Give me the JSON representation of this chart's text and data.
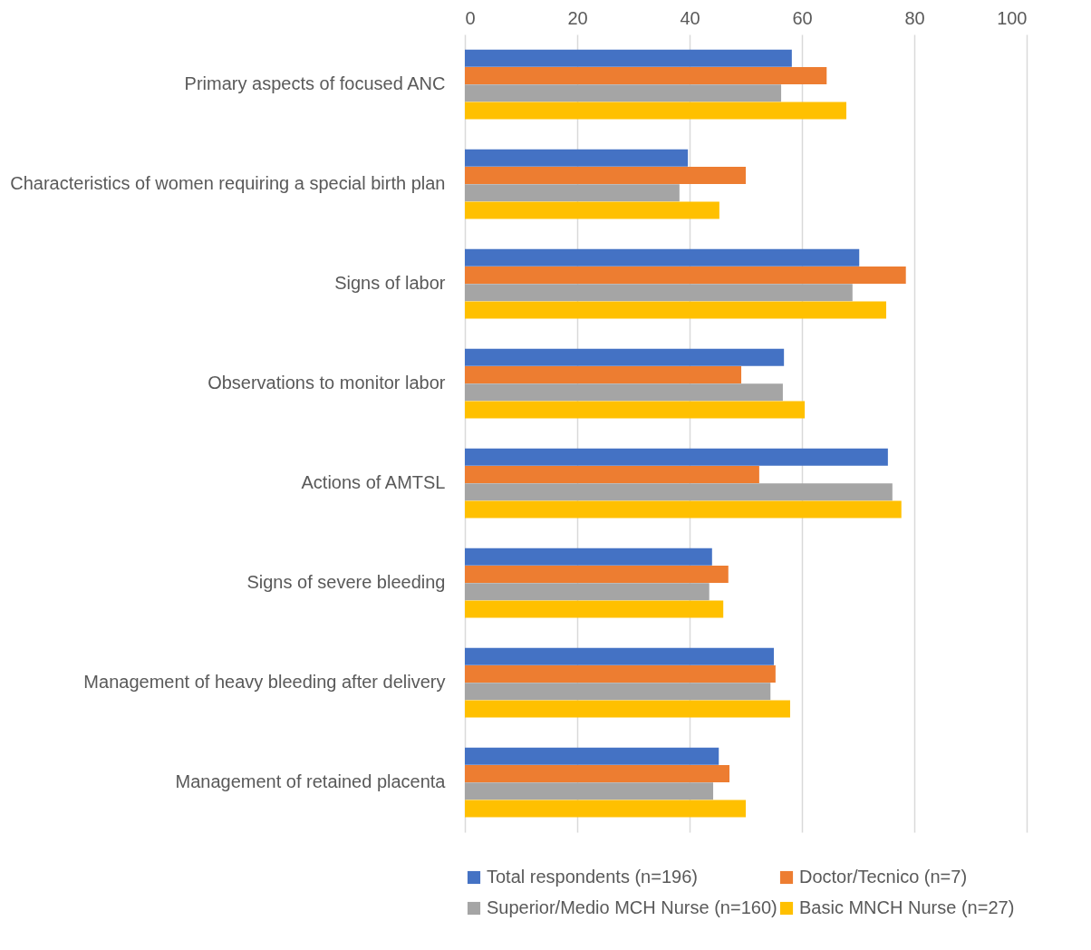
{
  "chart_data": {
    "type": "bar",
    "orientation": "horizontal",
    "categories": [
      "Primary aspects of focused ANC",
      "Characteristics of women requiring a special birth plan",
      "Signs of labor",
      "Observations to monitor labor",
      "Actions of AMTSL",
      "Signs of severe bleeding",
      "Management of heavy bleeding after delivery",
      "Management of retained placenta"
    ],
    "series": [
      {
        "name": "Total respondents (n=196)",
        "color": "#4472c4",
        "values": [
          58.2,
          39.7,
          70.2,
          56.8,
          75.3,
          44,
          55,
          45.2
        ]
      },
      {
        "name": "Doctor/Tecnico (n=7)",
        "color": "#ed7d31",
        "values": [
          64.4,
          50,
          78.5,
          49.2,
          52.4,
          46.9,
          55.3,
          47.1
        ]
      },
      {
        "name": "Superior/Medio MCH Nurse (n=160)",
        "color": "#a5a5a5",
        "values": [
          56.3,
          38.2,
          69,
          56.6,
          76.1,
          43.5,
          54.4,
          44.2
        ]
      },
      {
        "name": "Basic MNCH Nurse (n=27)",
        "color": "#ffc000",
        "values": [
          67.9,
          45.3,
          75,
          60.5,
          77.7,
          46,
          57.9,
          50
        ]
      }
    ],
    "xlim": [
      0,
      100
    ],
    "xticks": [
      0,
      20,
      40,
      60,
      80,
      100
    ],
    "grid": "x",
    "legend": "bottom"
  }
}
